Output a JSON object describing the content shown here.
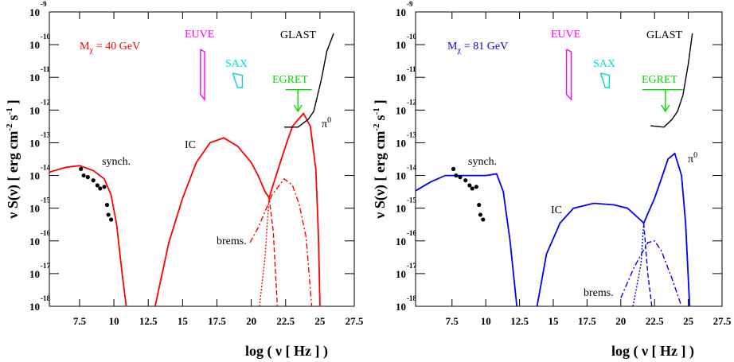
{
  "chart_data": [
    {
      "type": "line",
      "xlabel": "log ( ν [ Hz ] )",
      "ylabel": {
        "text": "ν S(ν) [ erg cm",
        "sup1": "-2",
        "mid": "s",
        "sup2": "-1",
        "end": "]"
      },
      "xlim": [
        5.3,
        27.5
      ],
      "xticks": [
        7.5,
        10,
        12.5,
        15,
        17.5,
        20,
        22.5,
        25,
        27.5
      ],
      "ylim": [
        1e-18,
        1e-09
      ],
      "log_y": true,
      "yticks": [
        {
          "value": 1e-18,
          "label": "10",
          "exponent": "-18"
        },
        {
          "value": 1e-17,
          "label": "10",
          "exponent": "-17"
        },
        {
          "value": 1e-16,
          "label": "10",
          "exponent": "-16"
        },
        {
          "value": 1e-15,
          "label": "10",
          "exponent": "-15"
        },
        {
          "value": 1e-14,
          "label": "10",
          "exponent": "-14"
        },
        {
          "value": 1e-13,
          "label": "10",
          "exponent": "-13"
        },
        {
          "value": 1e-12,
          "label": "10",
          "exponent": "-12"
        },
        {
          "value": 1e-11,
          "label": "10",
          "exponent": "-11"
        },
        {
          "value": 1e-10,
          "label": "10",
          "exponent": "-10"
        },
        {
          "value": 1e-09,
          "label": "10",
          "exponent": "-9"
        }
      ],
      "series": [
        {
          "color": "#ff0000",
          "style": "solid",
          "x": [
            5.3,
            6.5,
            7.5,
            8.5,
            9.3,
            9.8,
            10.2,
            10.6,
            10.9,
            12,
            13.0,
            14,
            15,
            16,
            17,
            18,
            19,
            20,
            20.5,
            21,
            21.3,
            22,
            22.5,
            23,
            23.8,
            24.3,
            24.7,
            24.9,
            25.0
          ],
          "values": [
            1.26e-14,
            1.78e-14,
            2e-14,
            1.41e-14,
            7.9e-15,
            2.5e-15,
            3.2e-16,
            1e-17,
            1e-18,
            null,
            1e-18,
            8.9e-17,
            2e-15,
            2.5e-14,
            1e-13,
            1.41e-13,
            7.9e-14,
            2.5e-14,
            1e-14,
            3.2e-15,
            2.1e-15,
            1.78e-14,
            7.9e-14,
            3.2e-13,
            7.9e-13,
            3.2e-13,
            1.58e-14,
            1.26e-16,
            1e-18
          ]
        },
        {
          "color": "#ff0000",
          "style": "dashed",
          "x": [
            21.3,
            21.6,
            21.9
          ],
          "values": [
            2.1e-15,
            2e-16,
            1e-18
          ]
        },
        {
          "color": "#ff0000",
          "style": "dashdot",
          "x": [
            19.9,
            20.5,
            21,
            21.5,
            22.4,
            23,
            23.5,
            24,
            24.4
          ],
          "values": [
            8.9e-17,
            2.5e-16,
            7.9e-16,
            2.5e-15,
            7.9e-15,
            5e-15,
            1.26e-15,
            1.26e-16,
            1e-18
          ]
        },
        {
          "color": "#ff0000",
          "style": "dotted",
          "x": [
            20.6,
            21,
            21.3
          ],
          "values": [
            1e-18,
            3.2e-17,
            2.1e-15
          ]
        },
        {
          "color": "#ff00ff",
          "style": "solid",
          "x": [
            16.3,
            16.6,
            16.6,
            16.3,
            16.3
          ],
          "values": [
            7.2e-11,
            6e-11,
            2.1e-12,
            3e-12,
            7.2e-11
          ]
        },
        {
          "color": "#00d8d8",
          "style": "solid",
          "x": [
            18.65,
            19.35,
            19.35,
            19.0,
            18.65
          ],
          "values": [
            1.35e-11,
            1.15e-11,
            4.9e-12,
            4.9e-12,
            1.35e-11
          ]
        },
        {
          "color": "#00dd00",
          "style": "solid",
          "x": [
            22.5,
            24.4
          ],
          "values": [
            4.2e-12,
            4.2e-12
          ]
        },
        {
          "color": "#000000",
          "style": "solid",
          "x": [
            22.4,
            23.4,
            24.15,
            24.55,
            25.1,
            25.5,
            26.0
          ],
          "values": [
            3e-13,
            3e-13,
            5.2e-13,
            9.1e-13,
            8.5e-12,
            6.2e-11,
            2.2e-10
          ]
        }
      ],
      "egret_arrow": {
        "x": 23.4,
        "value": 9.1e-13,
        "color": "#00dd00"
      },
      "points": {
        "x": [
          7.6,
          7.8,
          8.1,
          8.5,
          8.8,
          9.0,
          9.3,
          9.5,
          9.6,
          9.8
        ],
        "values": [
          1.58e-14,
          1e-14,
          8.9e-15,
          7.1e-15,
          5e-15,
          4e-15,
          4.5e-15,
          1.26e-15,
          6.3e-16,
          4.5e-16
        ]
      },
      "annotations": [
        {
          "text": "M",
          "subscript": "χ",
          "suffix": "= 40 GeV",
          "color": "#ff0000"
        },
        {
          "text": "EUVE",
          "color": "#ff00ff"
        },
        {
          "text": "SAX",
          "color": "#00d8d8"
        },
        {
          "text": "EGRET",
          "color": "#00dd00"
        },
        {
          "text": "GLAST",
          "color": "#000000"
        },
        {
          "text": "IC",
          "color": "#000000"
        },
        {
          "text": "synch.",
          "color": "#000000"
        },
        {
          "text": "brems.",
          "color": "#000000"
        },
        {
          "text": "π",
          "superscript": "0",
          "color": "#000000"
        }
      ]
    },
    {
      "type": "line",
      "xlabel": "log ( ν [ Hz ] )",
      "ylabel": {
        "text": "ν S(ν) [ erg cm",
        "sup1": "-2",
        "mid": "s",
        "sup2": "-1",
        "end": "]"
      },
      "xlim": [
        4.8,
        27.5
      ],
      "xticks": [
        7.5,
        10,
        12.5,
        15,
        17.5,
        20,
        22.5,
        25,
        27.5
      ],
      "ylim": [
        1e-18,
        1e-09
      ],
      "log_y": true,
      "yticks": [
        {
          "value": 1e-18,
          "label": "10",
          "exponent": "-18"
        },
        {
          "value": 1e-17,
          "label": "10",
          "exponent": "-17"
        },
        {
          "value": 1e-16,
          "label": "10",
          "exponent": "-16"
        },
        {
          "value": 1e-15,
          "label": "10",
          "exponent": "-15"
        },
        {
          "value": 1e-14,
          "label": "10",
          "exponent": "-14"
        },
        {
          "value": 1e-13,
          "label": "10",
          "exponent": "-13"
        },
        {
          "value": 1e-12,
          "label": "10",
          "exponent": "-12"
        },
        {
          "value": 1e-11,
          "label": "10",
          "exponent": "-11"
        },
        {
          "value": 1e-10,
          "label": "10",
          "exponent": "-10"
        },
        {
          "value": 1e-09,
          "label": "10",
          "exponent": "-9"
        }
      ],
      "series": [
        {
          "color": "#0000ff",
          "style": "solid",
          "x": [
            4.8,
            5.9,
            7,
            8.5,
            10,
            10.8,
            11.3,
            11.8,
            12.3,
            13,
            13.8,
            14.5,
            15.5,
            16.5,
            18,
            19.5,
            20.5,
            21.3,
            21.7,
            22.5,
            23,
            23.5,
            24,
            24.5,
            24.8,
            25.1
          ],
          "values": [
            3.4e-15,
            6.3e-15,
            1e-14,
            1e-14,
            1e-14,
            1.12e-14,
            3.2e-15,
            1e-16,
            1e-18,
            null,
            1e-18,
            4e-17,
            3.5e-16,
            1e-15,
            1.41e-15,
            1.26e-15,
            1e-15,
            5e-16,
            3.5e-16,
            2e-15,
            7.9e-15,
            3.2e-14,
            4.7e-14,
            1e-14,
            3.5e-16,
            1e-18
          ]
        },
        {
          "color": "#0000ff",
          "style": "dashed",
          "x": [
            21.7,
            22.0,
            22.3
          ],
          "values": [
            3.5e-16,
            1e-17,
            1e-18
          ]
        },
        {
          "color": "#0000ff",
          "style": "dashdot",
          "x": [
            20.0,
            21,
            22,
            22.5,
            23,
            23.8,
            24.5
          ],
          "values": [
            1.8e-18,
            1.6e-17,
            8.9e-17,
            1e-16,
            5e-17,
            7e-18,
            1e-18
          ]
        },
        {
          "color": "#0000ff",
          "style": "dotted",
          "x": [
            20.9,
            21.5,
            21.7
          ],
          "values": [
            1e-18,
            2e-17,
            3.5e-16
          ]
        },
        {
          "color": "#ff00ff",
          "style": "solid",
          "x": [
            15.98,
            16.33,
            16.33,
            15.98,
            15.98
          ],
          "values": [
            7.2e-11,
            6e-11,
            2.1e-12,
            3e-12,
            7.2e-11
          ]
        },
        {
          "color": "#00d8d8",
          "style": "solid",
          "x": [
            18.5,
            19.15,
            19.15,
            18.85,
            18.5
          ],
          "values": [
            1.35e-11,
            1.15e-11,
            4.9e-12,
            4.9e-12,
            1.35e-11
          ]
        },
        {
          "color": "#00dd00",
          "style": "solid",
          "x": [
            21.6,
            24.6
          ],
          "values": [
            4.2e-12,
            4.2e-12
          ]
        },
        {
          "color": "#000000",
          "style": "solid",
          "x": [
            22.2,
            23.2,
            23.8,
            24.2,
            24.6,
            25.0,
            25.3
          ],
          "values": [
            3.3e-13,
            3e-13,
            5.2e-13,
            9.1e-13,
            2.8e-12,
            2.6e-11,
            2.2e-10
          ]
        }
      ],
      "egret_arrow": {
        "x": 23.3,
        "value": 9.1e-13,
        "color": "#00dd00"
      },
      "points": {
        "x": [
          7.6,
          7.8,
          8.1,
          8.5,
          8.8,
          9.0,
          9.3,
          9.5,
          9.6,
          9.8
        ],
        "values": [
          1.58e-14,
          1e-14,
          8.9e-15,
          7.1e-15,
          5e-15,
          4e-15,
          4.5e-15,
          1.26e-15,
          6.3e-16,
          4.5e-16
        ]
      },
      "annotations": [
        {
          "text": "M",
          "subscript": "χ",
          "suffix": "= 81 GeV",
          "color": "#0000ff"
        },
        {
          "text": "EUVE",
          "color": "#ff00ff"
        },
        {
          "text": "SAX",
          "color": "#00d8d8"
        },
        {
          "text": "EGRET",
          "color": "#00dd00"
        },
        {
          "text": "GLAST",
          "color": "#000000"
        },
        {
          "text": "IC",
          "color": "#000000"
        },
        {
          "text": "synch.",
          "color": "#000000"
        },
        {
          "text": "brems.",
          "color": "#000000"
        },
        {
          "text": "π",
          "superscript": "0",
          "color": "#000000"
        }
      ]
    }
  ]
}
